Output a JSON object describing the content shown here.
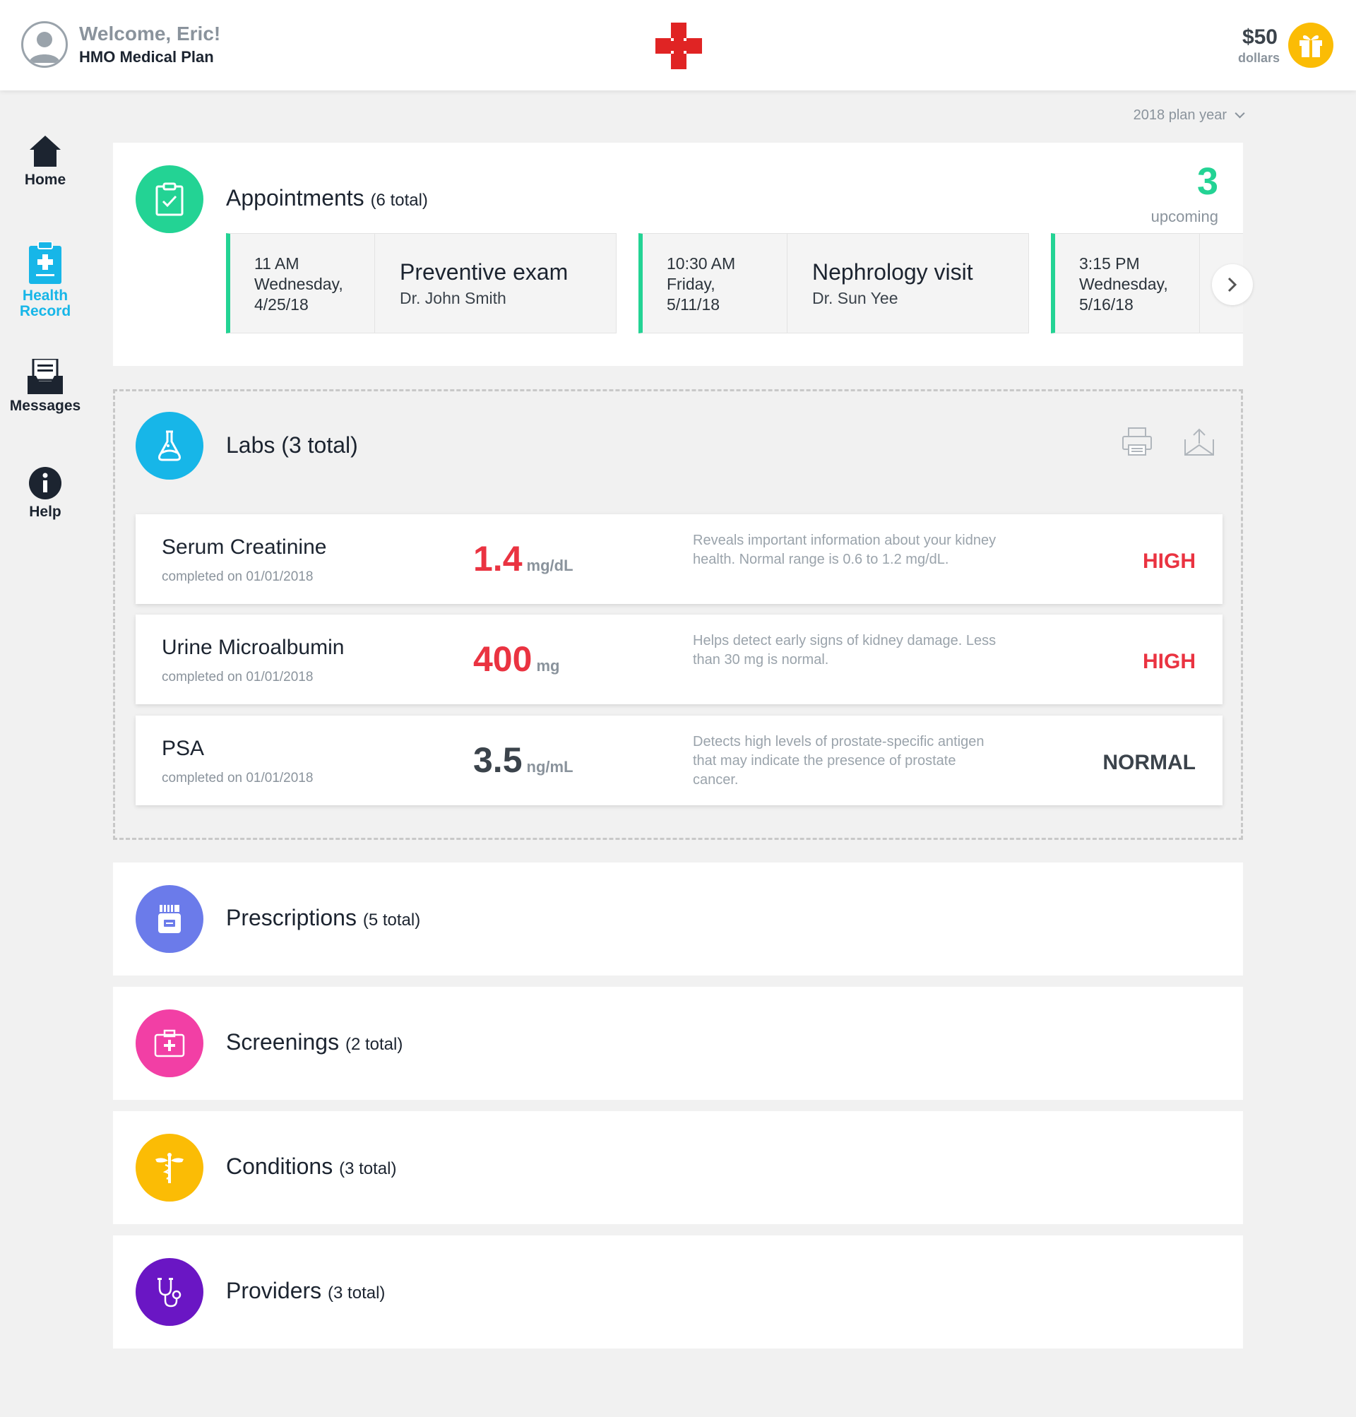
{
  "header": {
    "welcome": "Welcome, Eric!",
    "plan": "HMO Medical Plan",
    "reward_amount": "$50",
    "reward_unit": "dollars"
  },
  "sidebar": {
    "items": [
      {
        "label": "Home",
        "icon": "home-icon"
      },
      {
        "label": "Health Record",
        "label_line1": "Health",
        "label_line2": "Record",
        "icon": "clipboard-plus-icon",
        "active": true
      },
      {
        "label": "Messages",
        "icon": "inbox-icon"
      },
      {
        "label": "Help",
        "icon": "info-icon"
      }
    ]
  },
  "plan_year": "2018 plan year",
  "appointments": {
    "title": "Appointments",
    "count": "(6 total)",
    "upcoming_count": "3",
    "upcoming_label": "upcoming",
    "items": [
      {
        "time": "11 AM",
        "day": "Wednesday,",
        "date": "4/25/18",
        "what": "Preventive exam",
        "doctor": "Dr. John Smith"
      },
      {
        "time": "10:30 AM",
        "day": "Friday,",
        "date": "5/11/18",
        "what": "Nephrology visit",
        "doctor": "Dr. Sun Yee"
      },
      {
        "time": "3:15 PM",
        "day": "Wednesday,",
        "date": "5/16/18",
        "what": "",
        "doctor": ""
      }
    ]
  },
  "labs": {
    "title": "Labs (3 total)",
    "items": [
      {
        "name": "Serum Creatinine",
        "completed": "completed on 01/01/2018",
        "value": "1.4",
        "unit": "mg/dL",
        "description": "Reveals important information about your kidney health. Normal range is 0.6 to 1.2 mg/dL.",
        "status": "HIGH"
      },
      {
        "name": "Urine Microalbumin",
        "completed": "completed on 01/01/2018",
        "value": "400",
        "unit": "mg",
        "description": "Helps detect early signs of kidney damage. Less than 30 mg is normal.",
        "status": "HIGH"
      },
      {
        "name": "PSA",
        "completed": "completed on 01/01/2018",
        "value": "3.5",
        "unit": "ng/mL",
        "description": "Detects high levels of prostate-specific antigen that may indicate the presence of prostate cancer.",
        "status": "NORMAL"
      }
    ]
  },
  "sections": {
    "prescriptions": {
      "title": "Prescriptions",
      "count": "(5 total)",
      "color": "#6b7bea"
    },
    "screenings": {
      "title": "Screenings",
      "count": "(2 total)",
      "color": "#f23fa5"
    },
    "conditions": {
      "title": "Conditions",
      "count": "(3 total)",
      "color": "#fbbc05"
    },
    "providers": {
      "title": "Providers",
      "count": "(3 total)",
      "color": "#6a16c4"
    }
  },
  "colors": {
    "accent_green": "#23d394",
    "accent_blue": "#17b6e8",
    "high": "#ea3341",
    "brand_red": "#e02424",
    "gift_yellow": "#fbbc05"
  }
}
